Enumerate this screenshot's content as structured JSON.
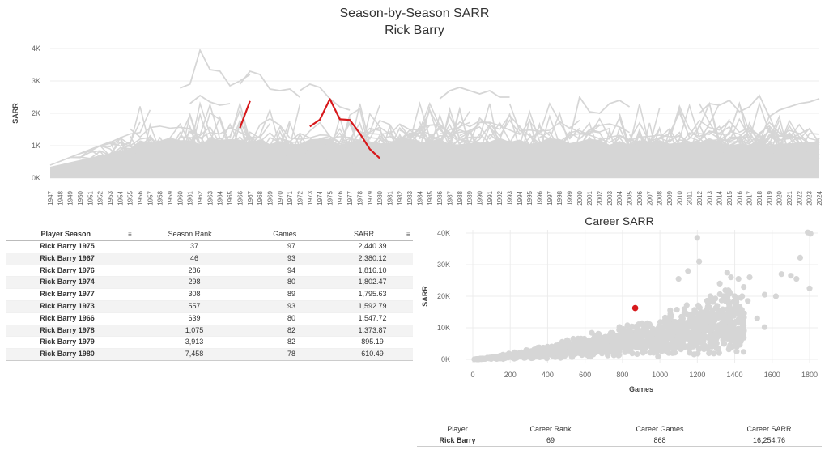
{
  "title": {
    "line1": "Season-by-Season SARR",
    "line2": "Rick Barry"
  },
  "colors": {
    "highlight": "#d7191c",
    "background_series": "#d6d6d6",
    "grid": "#ececec"
  },
  "chart_data": [
    {
      "type": "line",
      "title": "Season-by-Season SARR",
      "subtitle": "Rick Barry",
      "xlabel": "",
      "ylabel": "SARR",
      "x": [
        1947,
        1948,
        1949,
        1950,
        1951,
        1952,
        1953,
        1954,
        1955,
        1956,
        1957,
        1958,
        1959,
        1960,
        1961,
        1962,
        1963,
        1964,
        1965,
        1966,
        1967,
        1968,
        1969,
        1970,
        1971,
        1972,
        1973,
        1974,
        1975,
        1976,
        1977,
        1978,
        1979,
        1980,
        1981,
        1982,
        1983,
        1984,
        1985,
        1986,
        1987,
        1988,
        1989,
        1990,
        1991,
        1992,
        1993,
        1994,
        1995,
        1996,
        1997,
        1998,
        1999,
        2000,
        2001,
        2002,
        2003,
        2004,
        2005,
        2006,
        2007,
        2008,
        2009,
        2010,
        2011,
        2012,
        2013,
        2014,
        2015,
        2016,
        2017,
        2018,
        2019,
        2020,
        2021,
        2022,
        2023,
        2024
      ],
      "xlim": [
        1947,
        2024
      ],
      "ylim": [
        0,
        4000
      ],
      "yticks": [
        0,
        1000,
        2000,
        3000,
        4000
      ],
      "ytick_labels": [
        "0K",
        "1K",
        "2K",
        "3K",
        "4K"
      ],
      "grid": true,
      "highlight_series": {
        "name": "Rick Barry",
        "segments": [
          {
            "x": [
              1966,
              1967
            ],
            "y": [
              1547.72,
              2380.12
            ]
          },
          {
            "x": [
              1973,
              1974,
              1975,
              1976,
              1977,
              1978,
              1979,
              1980
            ],
            "y": [
              1592.79,
              1802.47,
              2440.39,
              1816.1,
              1795.63,
              1373.87,
              895.19,
              610.49
            ]
          }
        ]
      },
      "background_note": "All other player careers drawn in light gray"
    },
    {
      "type": "scatter",
      "title": "Career SARR",
      "xlabel": "Games",
      "ylabel": "SARR",
      "xlim": [
        0,
        1800
      ],
      "ylim": [
        0,
        40000
      ],
      "xticks": [
        0,
        200,
        400,
        600,
        800,
        1000,
        1200,
        1400,
        1600,
        1800
      ],
      "yticks": [
        0,
        10000,
        20000,
        30000,
        40000
      ],
      "ytick_labels": [
        "0K",
        "10K",
        "20K",
        "30K",
        "40K"
      ],
      "grid": true,
      "highlight_point": {
        "name": "Rick Barry",
        "x": 868,
        "y": 16254.76
      },
      "notable_points": [
        {
          "x": 1790,
          "y": 40200
        },
        {
          "x": 1805,
          "y": 39800
        },
        {
          "x": 1800,
          "y": 22500
        },
        {
          "x": 1750,
          "y": 32200
        },
        {
          "x": 1650,
          "y": 27000
        },
        {
          "x": 1700,
          "y": 26500
        },
        {
          "x": 1730,
          "y": 25500
        },
        {
          "x": 1620,
          "y": 20000
        },
        {
          "x": 1560,
          "y": 20500
        },
        {
          "x": 1480,
          "y": 26000
        },
        {
          "x": 1420,
          "y": 25500
        },
        {
          "x": 1400,
          "y": 20000
        },
        {
          "x": 1360,
          "y": 27500
        },
        {
          "x": 1380,
          "y": 26000
        },
        {
          "x": 1320,
          "y": 24000
        },
        {
          "x": 1270,
          "y": 20000
        },
        {
          "x": 1200,
          "y": 38500
        },
        {
          "x": 1210,
          "y": 31000
        },
        {
          "x": 1150,
          "y": 28000
        },
        {
          "x": 1100,
          "y": 25500
        },
        {
          "x": 1520,
          "y": 13000
        },
        {
          "x": 1560,
          "y": 10200
        },
        {
          "x": 1420,
          "y": 11800
        },
        {
          "x": 1470,
          "y": 18500
        }
      ]
    }
  ],
  "season_table": {
    "headers": {
      "player_season": "Player Season",
      "season_rank": "Season Rank",
      "games": "Games",
      "sarr": "SARR"
    },
    "rows": [
      {
        "player_season": "Rick Barry 1975",
        "season_rank": "37",
        "games": "97",
        "sarr": "2,440.39"
      },
      {
        "player_season": "Rick Barry 1967",
        "season_rank": "46",
        "games": "93",
        "sarr": "2,380.12"
      },
      {
        "player_season": "Rick Barry 1976",
        "season_rank": "286",
        "games": "94",
        "sarr": "1,816.10"
      },
      {
        "player_season": "Rick Barry 1974",
        "season_rank": "298",
        "games": "80",
        "sarr": "1,802.47"
      },
      {
        "player_season": "Rick Barry 1977",
        "season_rank": "308",
        "games": "89",
        "sarr": "1,795.63"
      },
      {
        "player_season": "Rick Barry 1973",
        "season_rank": "557",
        "games": "93",
        "sarr": "1,592.79"
      },
      {
        "player_season": "Rick Barry 1966",
        "season_rank": "639",
        "games": "80",
        "sarr": "1,547.72"
      },
      {
        "player_season": "Rick Barry 1978",
        "season_rank": "1,075",
        "games": "82",
        "sarr": "1,373.87"
      },
      {
        "player_season": "Rick Barry 1979",
        "season_rank": "3,913",
        "games": "82",
        "sarr": "895.19"
      },
      {
        "player_season": "Rick Barry 1980",
        "season_rank": "7,458",
        "games": "78",
        "sarr": "610.49"
      }
    ]
  },
  "career_table": {
    "headers": {
      "player": "Player",
      "career_rank": "Career Rank",
      "career_games": "Career Games",
      "career_sarr": "Career SARR"
    },
    "row": {
      "player": "Rick Barry",
      "career_rank": "69",
      "career_games": "868",
      "career_sarr": "16,254.76"
    }
  }
}
